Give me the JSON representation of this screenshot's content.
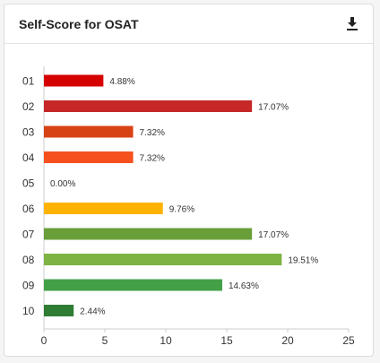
{
  "card": {
    "title": "Self-Score for OSAT",
    "download_icon": "download-icon"
  },
  "chart_data": {
    "type": "bar",
    "orientation": "horizontal",
    "title": "Self-Score for OSAT",
    "categories": [
      "01",
      "02",
      "03",
      "04",
      "05",
      "06",
      "07",
      "08",
      "09",
      "10"
    ],
    "values": [
      4.88,
      17.07,
      7.32,
      7.32,
      0.0,
      9.76,
      17.07,
      19.51,
      14.63,
      2.44
    ],
    "value_labels": [
      "4.88%",
      "17.07%",
      "7.32%",
      "7.32%",
      "0.00%",
      "9.76%",
      "17.07%",
      "19.51%",
      "14.63%",
      "2.44%"
    ],
    "colors": [
      "#d50000",
      "#c62828",
      "#d84315",
      "#f4511e",
      "#ef6c00",
      "#ffb300",
      "#689f38",
      "#7cb342",
      "#43a047",
      "#2e7d32"
    ],
    "xlim": [
      0,
      25
    ],
    "xticks": [
      0,
      5,
      10,
      15,
      20,
      25
    ],
    "xlabel": "",
    "ylabel": "",
    "grid": "none"
  }
}
